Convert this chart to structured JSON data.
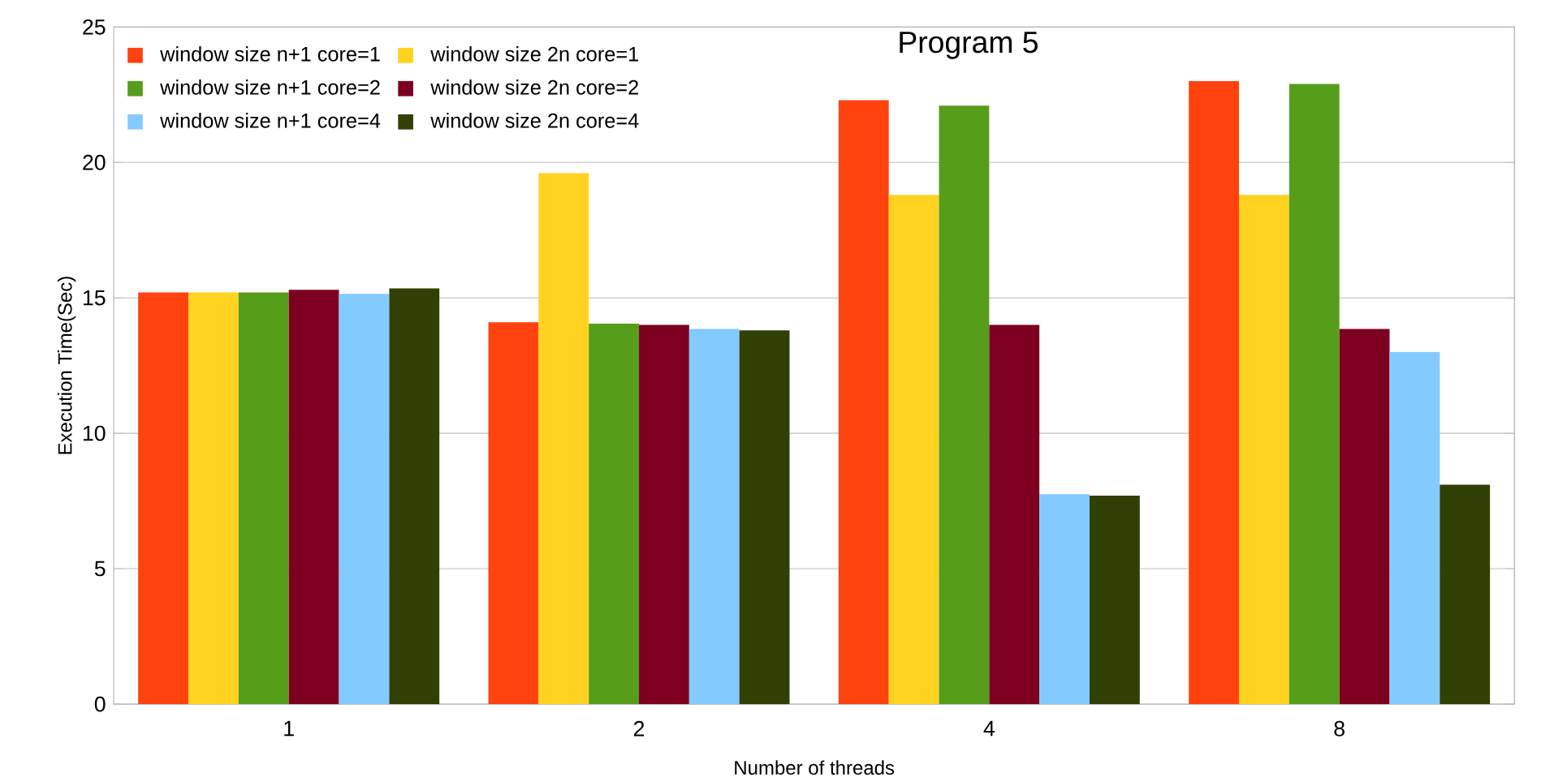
{
  "chart_data": {
    "type": "bar",
    "title": "Program 5",
    "xlabel": "Number of threads",
    "ylabel": "Execution Time(Sec)",
    "categories": [
      "1",
      "2",
      "4",
      "8"
    ],
    "series": [
      {
        "name": "window size n+1 core=1",
        "color": "#ff420e",
        "values": [
          15.2,
          14.1,
          22.3,
          23.0
        ]
      },
      {
        "name": "window size 2n core=1",
        "color": "#ffd320",
        "values": [
          15.2,
          19.6,
          18.8,
          18.8
        ]
      },
      {
        "name": "window size n+1 core=2",
        "color": "#579d1c",
        "values": [
          15.2,
          14.05,
          22.1,
          22.9
        ]
      },
      {
        "name": "window size 2n core=2",
        "color": "#7e0021",
        "values": [
          15.3,
          14.0,
          14.0,
          13.85
        ]
      },
      {
        "name": "window size n+1 core=4",
        "color": "#83caff",
        "values": [
          15.15,
          13.85,
          7.75,
          13.0
        ]
      },
      {
        "name": "window size 2n core=4",
        "color": "#314004",
        "values": [
          15.35,
          13.8,
          7.7,
          8.1
        ]
      }
    ],
    "ylim": [
      0,
      25
    ],
    "yticks": [
      0,
      5,
      10,
      15,
      20,
      25
    ],
    "grid": "y",
    "legend": "top left"
  }
}
